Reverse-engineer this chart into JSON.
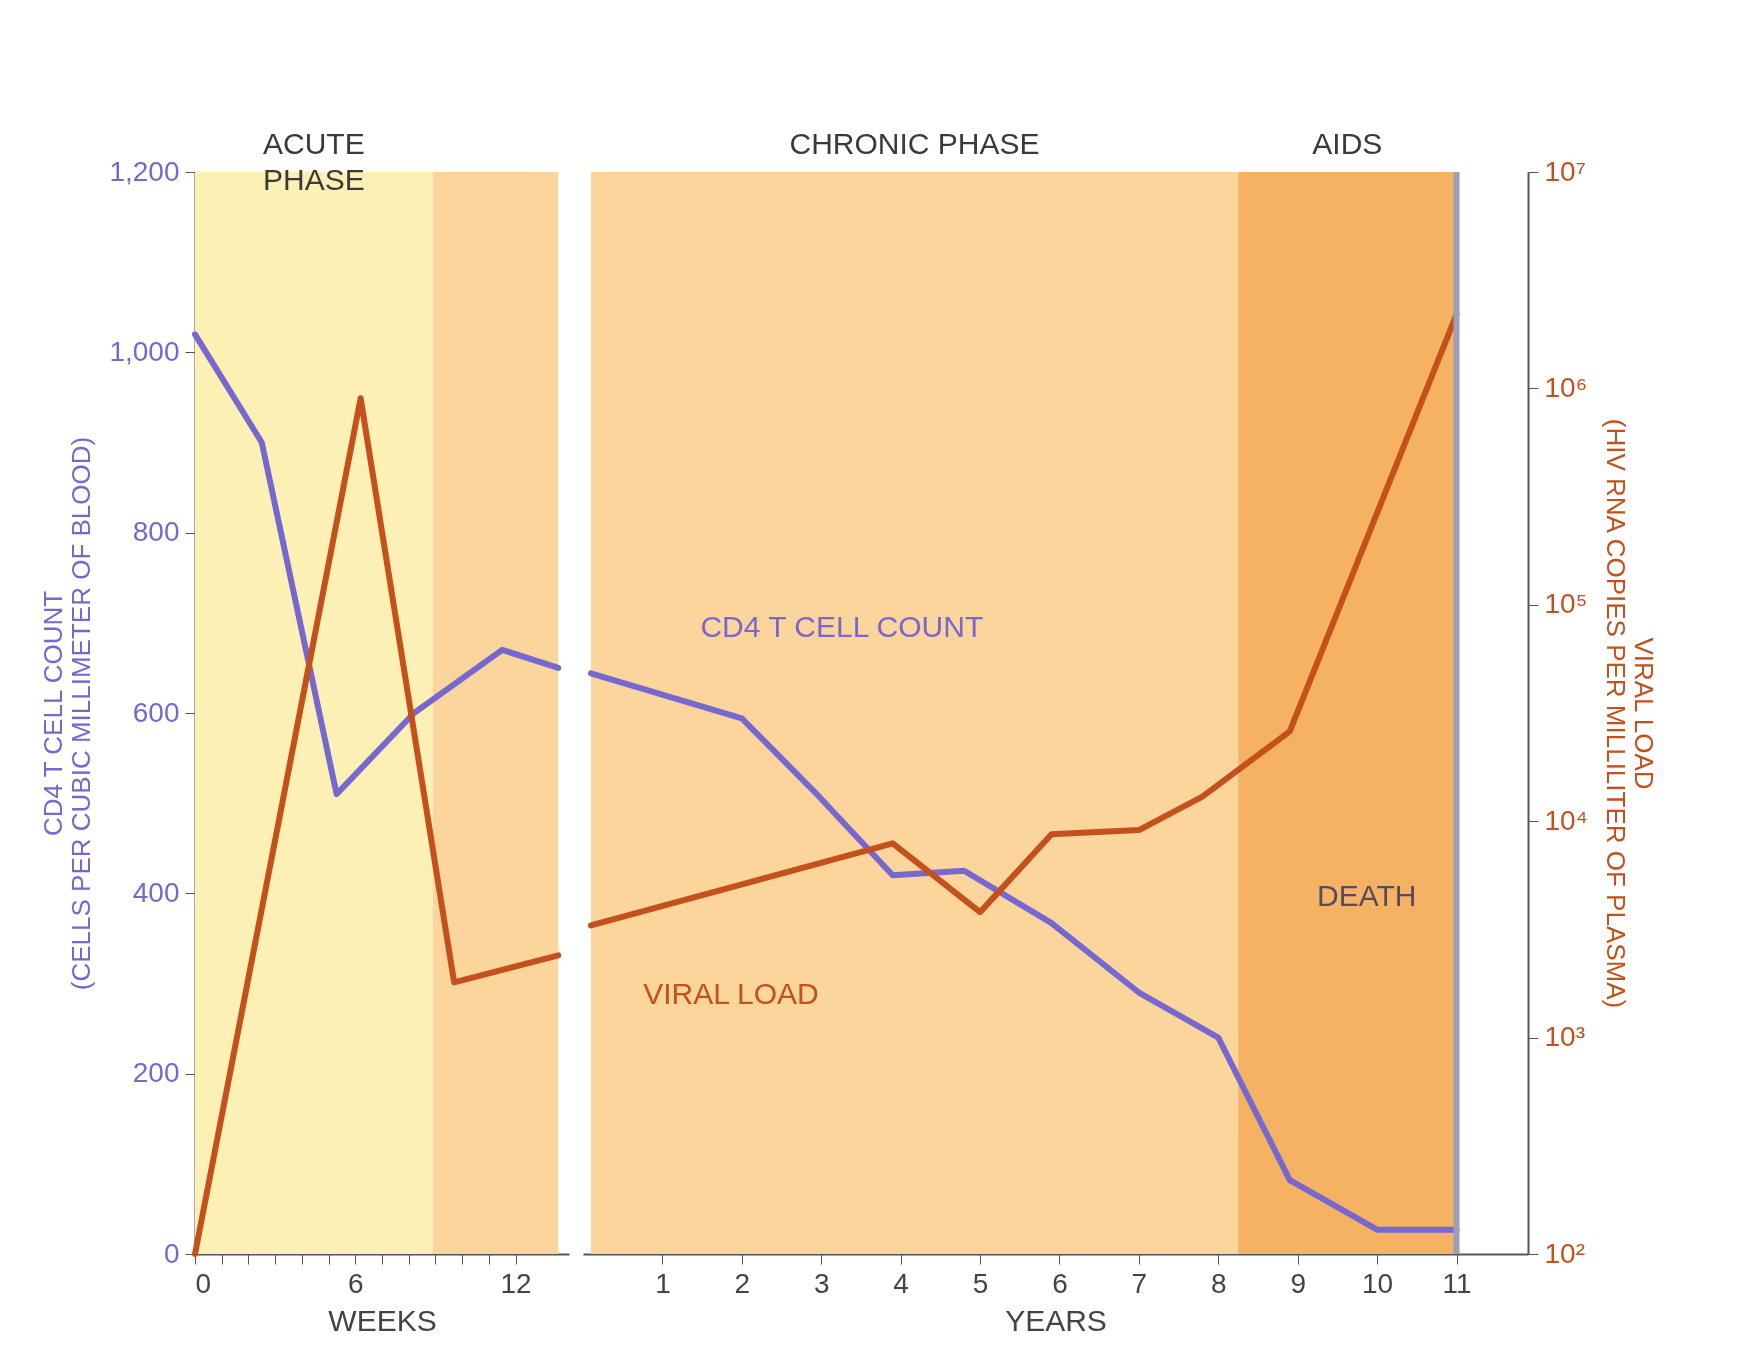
{
  "chart_data": [
    {
      "type": "line",
      "xlabel": "WEEKS",
      "ylabel": "CD4 T CELL COUNT\n(CELLS PER CUBIC MILLIMETER OF BLOOD)",
      "xlim": [
        0,
        14
      ],
      "xticks": [
        0,
        {
          "value": 1,
          "label": null
        },
        {
          "value": 2,
          "label": null
        },
        {
          "value": 3,
          "label": null
        },
        {
          "value": 4,
          "label": null
        },
        {
          "value": 5,
          "label": null
        },
        6,
        {
          "value": 7,
          "label": null
        },
        {
          "value": 8,
          "label": null
        },
        {
          "value": 9,
          "label": null
        },
        {
          "value": 10,
          "label": null
        },
        {
          "value": 11,
          "label": null
        },
        12
      ],
      "ylim": [
        0,
        1200
      ],
      "yticks": [
        0,
        200,
        400,
        600,
        800,
        {
          "value": 1000,
          "label": "1,000"
        },
        {
          "value": 1200,
          "label": "1,200"
        }
      ],
      "y2lim": [
        100,
        10000000
      ],
      "log": "y2",
      "bands": [
        {
          "axis": "x",
          "from": 0,
          "to": 8.9,
          "label": "ACUTE\nPHASE",
          "color": "#fcf0b4"
        },
        {
          "axis": "x",
          "from": 8.9,
          "to": 13.6,
          "color": "#fbd59c"
        }
      ],
      "series": [
        {
          "color": "#7668d0",
          "x": [
            0,
            2.5,
            5.3,
            8.2,
            11.5,
            13.6
          ],
          "values": [
            1020,
            900,
            510,
            600,
            670,
            650
          ]
        },
        {
          "color": "#c4501c",
          "axis": "y2",
          "x": [
            0,
            6.2,
            9.7,
            13.6
          ],
          "values": [
            100,
            900000,
            1800,
            2400
          ]
        }
      ]
    },
    {
      "type": "line",
      "xlabel": "YEARS",
      "y2label": "VIRAL LOAD\n(HIV RNA COPIES PER MILLILITER OF PLASMA)",
      "xlim": [
        0,
        11.9
      ],
      "xticks": [
        1,
        2,
        3,
        4,
        5,
        6,
        7,
        8,
        9,
        10,
        11
      ],
      "ylim": [
        0,
        1200
      ],
      "y2lim": [
        100,
        10000000
      ],
      "y2ticks": [
        {
          "value": 100,
          "label": "10²"
        },
        {
          "value": 1000,
          "label": "10³"
        },
        {
          "value": 10000,
          "label": "10⁴"
        },
        {
          "value": 100000,
          "label": "10⁵"
        },
        {
          "value": 1000000,
          "label": "10⁶"
        },
        {
          "value": 10000000,
          "label": "10⁷"
        }
      ],
      "log": "y2",
      "bands": [
        {
          "axis": "x",
          "from": 0.1,
          "to": 8.25,
          "label": "CHRONIC PHASE",
          "color": "#fbd59c"
        },
        {
          "axis": "x",
          "from": 8.25,
          "to": 11,
          "label": "AIDS",
          "color": "#f6b263"
        }
      ],
      "ref_lines": [
        {
          "axis": "x",
          "value": 11,
          "label": "DEATH",
          "color": "#9aa0b8"
        }
      ],
      "series": [
        {
          "name": "CD4 T CELL COUNT",
          "color": "#7668d0",
          "x": [
            0.1,
            2,
            2.9,
            3.9,
            4.8,
            5.9,
            7,
            8,
            8.9,
            10,
            11
          ],
          "values": [
            644,
            594,
            514,
            420,
            425,
            367,
            290,
            240,
            82,
            27,
            27
          ]
        },
        {
          "name": "VIRAL LOAD",
          "color": "#c4501c",
          "axis": "y2",
          "x": [
            0.1,
            3.9,
            5,
            5.9,
            7,
            7.8,
            8.9,
            11
          ],
          "values": [
            3300,
            7900,
            3800,
            8700,
            9100,
            13000,
            26000,
            2200000
          ]
        }
      ]
    }
  ]
}
